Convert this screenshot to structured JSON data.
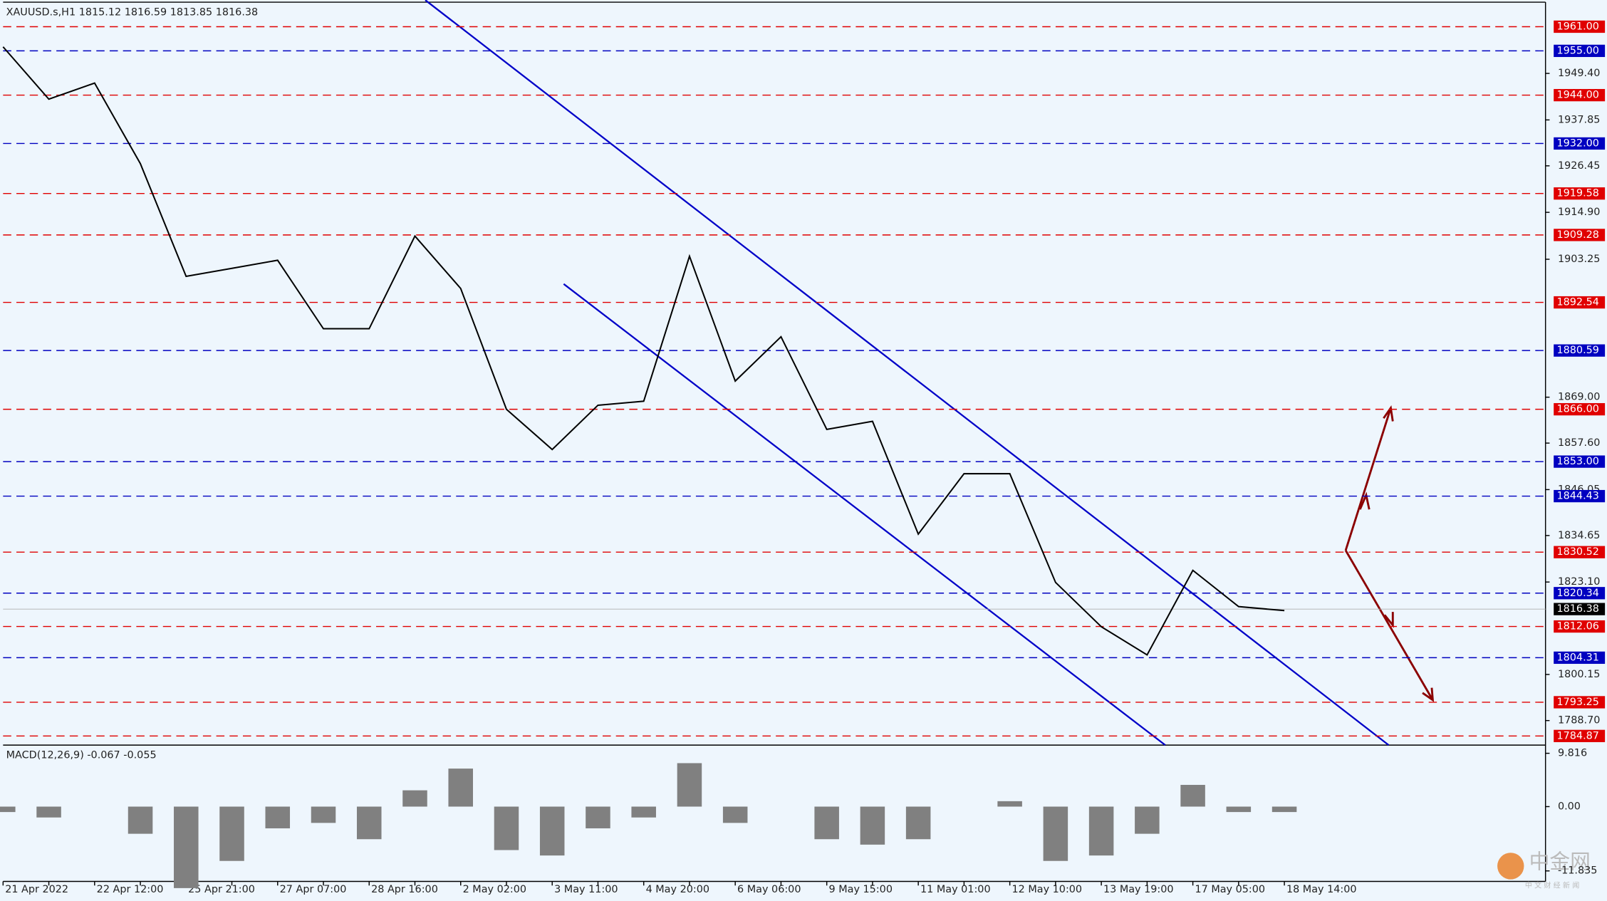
{
  "chart_data": {
    "type": "line",
    "title": "XAUUSD.s,H1  1815.12 1816.59 1813.85 1816.38",
    "categories": [
      "21 Apr 2022",
      null,
      "22 Apr 12:00",
      null,
      "25 Apr 21:00",
      null,
      "27 Apr 07:00",
      null,
      "28 Apr 16:00",
      null,
      "2 May 02:00",
      null,
      "3 May 11:00",
      null,
      "4 May 20:00",
      null,
      "6 May 06:00",
      null,
      "9 May 15:00",
      null,
      "11 May 01:00",
      null,
      "12 May 10:00",
      null,
      "13 May 19:00",
      null,
      "17 May 05:00",
      null,
      "18 May 14:00"
    ],
    "series": [
      {
        "color": "#000000",
        "values": [
          1956,
          1943,
          1947,
          1927,
          1899,
          1901,
          1903,
          1886,
          1886,
          1909,
          1896,
          1866,
          1856,
          1867,
          1868,
          1904,
          1873,
          1884,
          1861,
          1863,
          1835,
          1850,
          1850,
          1823,
          1812,
          1805,
          1826,
          1817,
          1816
        ]
      },
      {
        "name": "MACD(12,26,9) -0.067 -0.055",
        "color": "#808080",
        "axis": "y2",
        "values": [
          -1,
          -2,
          0,
          -5,
          -15,
          -10,
          -4,
          -3,
          -6,
          3,
          7,
          -8,
          -9,
          -4,
          -2,
          8,
          -3,
          0,
          -6,
          -7,
          -6,
          0,
          1,
          -10,
          -9,
          -5,
          4,
          -1,
          -1
        ]
      }
    ],
    "ylim": [
      1782.6,
      1967.6
    ],
    "yticks": [
      {
        "value": 1949.4,
        "label": "1949.40"
      },
      {
        "value": 1937.85,
        "label": "1937.85"
      },
      {
        "value": 1926.45,
        "label": "1926.45"
      },
      {
        "value": 1914.9,
        "label": "1914.90"
      },
      {
        "value": 1903.25,
        "label": "1903.25"
      },
      {
        "value": 1869,
        "label": "1869.00"
      },
      {
        "value": 1857.6,
        "label": "1857.60"
      },
      {
        "value": 1846.05,
        "label": "1846.05"
      },
      {
        "value": 1834.65,
        "label": "1834.65"
      },
      {
        "value": 1823.1,
        "label": "1823.10"
      },
      {
        "value": 1800.15,
        "label": "1800.15"
      },
      {
        "value": 1788.7,
        "label": "1788.70"
      }
    ],
    "y2lim": [
      -13.77,
      11.13
    ],
    "y2ticks": [
      {
        "value": 9.816,
        "label": "9.816"
      },
      {
        "value": 0,
        "label": "0.00"
      },
      {
        "value": -11.835,
        "label": "-11.835"
      }
    ],
    "levels": [
      {
        "value": 1961,
        "label": "1961.00",
        "color": "#e00000"
      },
      {
        "value": 1955,
        "label": "1955.00",
        "color": "#0000c0"
      },
      {
        "value": 1944,
        "label": "1944.00",
        "color": "#e00000"
      },
      {
        "value": 1932,
        "label": "1932.00",
        "color": "#0000c0"
      },
      {
        "value": 1919.58,
        "label": "1919.58",
        "color": "#e00000"
      },
      {
        "value": 1909.28,
        "label": "1909.28",
        "color": "#e00000"
      },
      {
        "value": 1892.54,
        "label": "1892.54",
        "color": "#e00000"
      },
      {
        "value": 1880.59,
        "label": "1880.59",
        "color": "#0000c0"
      },
      {
        "value": 1866,
        "label": "1866.00",
        "color": "#e00000"
      },
      {
        "value": 1853,
        "label": "1853.00",
        "color": "#0000c0"
      },
      {
        "value": 1844.43,
        "label": "1844.43",
        "color": "#0000c0"
      },
      {
        "value": 1830.52,
        "label": "1830.52",
        "color": "#e00000"
      },
      {
        "value": 1820.34,
        "label": "1820.34",
        "color": "#0000c0"
      },
      {
        "value": 1812.06,
        "label": "1812.06",
        "color": "#e00000"
      },
      {
        "value": 1804.31,
        "label": "1804.31",
        "color": "#0000c0"
      },
      {
        "value": 1793.25,
        "label": "1793.25",
        "color": "#e00000"
      },
      {
        "value": 1784.87,
        "label": "1784.87",
        "color": "#e00000"
      }
    ],
    "current": {
      "value": 1816.38,
      "label": "1816.38"
    },
    "watermark": "中金网",
    "watermark_sub": "中 文 财 经 新 闻"
  }
}
